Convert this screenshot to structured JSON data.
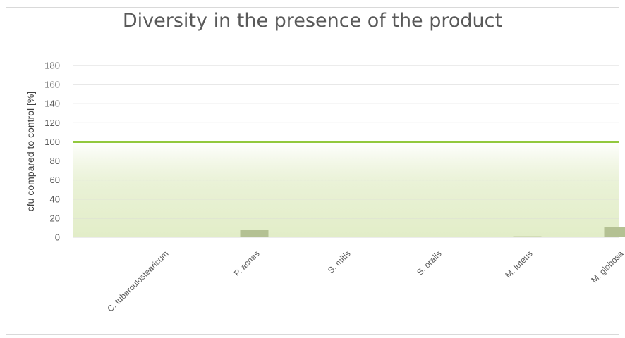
{
  "chart_data": {
    "type": "bar",
    "title": "Diversity in the presence of the product",
    "xlabel": "",
    "ylabel": "cfu compared to control  [%]",
    "categories": [
      "C. tuberculostearicum",
      "P. acnes",
      "S. mitis",
      "S. oralis",
      "M. luteus",
      "M. globosa"
    ],
    "series": [
      {
        "values": [
          0,
          8,
          0,
          0,
          1,
          11
        ]
      }
    ],
    "reference_line": {
      "value": 100,
      "color": "#92c83e"
    },
    "shaded_band": {
      "from": 0,
      "to": 100,
      "color": "#e2edc8"
    },
    "yticks": [
      "0",
      "20",
      "40",
      "60",
      "80",
      "100",
      "120",
      "140",
      "160",
      "180"
    ],
    "ylim": [
      0,
      180
    ],
    "grid": true,
    "colors": {
      "bar": "#b4c193",
      "gridline": "#d9d9d9",
      "reference": "#92c83e"
    }
  }
}
